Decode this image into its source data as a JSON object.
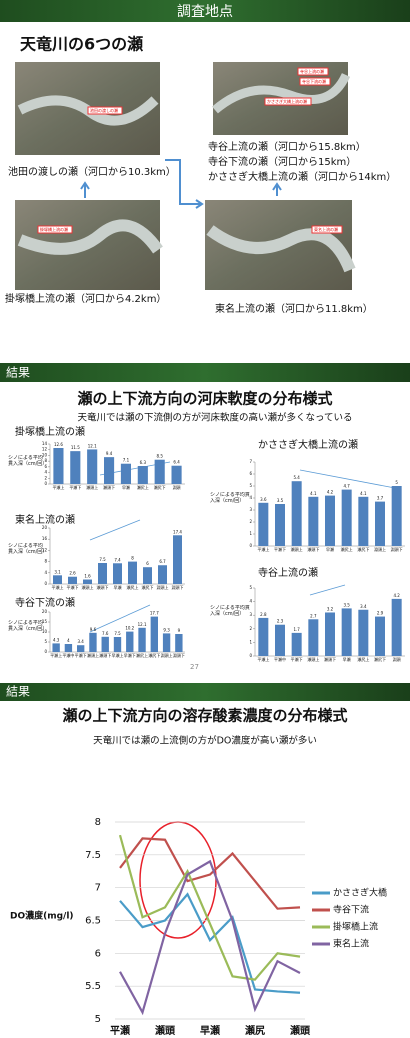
{
  "slide1": {
    "header": "調査地点",
    "title": "天竜川の6つの瀬",
    "captions": [
      "池田の渡しの瀬（河口から10.3km）",
      "掛塚橋上流の瀬（河口から4.2km）",
      "寺谷上流の瀬（河口から15.8km）",
      "寺谷下流の瀬（河口から15km）",
      "かささぎ大橋上流の瀬（河口から14km）",
      "東名上流の瀬（河口から11.8km）"
    ],
    "photo_labels": [
      "池田の渡しの瀬",
      "掛塚橋上流の瀬",
      "寺谷上流の瀬",
      "寺谷下流の瀬",
      "かささぎ大橋上流の瀬",
      "東名上流の瀬"
    ]
  },
  "slide2": {
    "header": "結果",
    "title": "瀬の上下流方向の河床軟度の分布様式",
    "subtitle": "天竜川では瀬の下流側の方が河床軟度の高い瀬が多くなっている",
    "page_number": "27"
  },
  "slide3": {
    "header": "結果",
    "title": "瀬の上下流方向の溶存酸素濃度の分布様式",
    "subtitle": "天竜川では瀬の上流側の方がDO濃度が高い瀬が多い"
  },
  "chart_data": [
    {
      "type": "bar",
      "title": "掛塚橋上流の瀬",
      "y_label": "シノによる平均貫入深（cm/回）",
      "color": "#4f81bd",
      "categories": [
        "平瀬上",
        "平瀬下",
        "瀬頭上",
        "瀬頭下",
        "早瀬",
        "瀬尻上",
        "瀬尻下",
        "淵頭"
      ],
      "values": [
        12.6,
        11.5,
        12.1,
        9.4,
        7.1,
        6.3,
        8.5,
        6.4
      ],
      "ylim": [
        0,
        14
      ],
      "yticks": [
        0,
        2,
        4,
        6,
        8,
        10,
        12,
        14
      ]
    },
    {
      "type": "bar",
      "title": "東名上流の瀬",
      "y_label": "シノによる平均貫入深（cm/回）",
      "color": "#4f81bd",
      "categories": [
        "平瀬上",
        "平瀬下",
        "瀬頭上",
        "瀬頭下",
        "早瀬",
        "瀬尻上",
        "瀬尻下",
        "淵頭上",
        "淵頭下"
      ],
      "values": [
        3.1,
        2.6,
        1.6,
        7.5,
        7.4,
        8.0,
        6.0,
        6.7,
        17.4
      ],
      "ylim": [
        0,
        20
      ],
      "yticks": [
        0,
        4,
        8,
        12,
        16,
        20
      ]
    },
    {
      "type": "bar",
      "title": "寺谷下流の瀬",
      "y_label": "シノによる平均貫入深（cm/回）",
      "color": "#4f81bd",
      "categories": [
        "平瀬上",
        "平瀬中",
        "平瀬下",
        "瀬頭上",
        "瀬頭下",
        "早瀬上",
        "早瀬下",
        "瀬尻上",
        "瀬尻下",
        "淵頭上",
        "淵頭下"
      ],
      "values": [
        4.3,
        4.0,
        3.4,
        9.6,
        7.6,
        7.5,
        10.2,
        12.1,
        17.7,
        9.3,
        9.0
      ],
      "ylim": [
        0,
        20
      ],
      "yticks": [
        0,
        5,
        10,
        15,
        20
      ]
    },
    {
      "type": "bar",
      "title": "かささぎ大橋上流の瀬",
      "y_label": "シノによる平均貫入深（cm/回）",
      "color": "#4f81bd",
      "categories": [
        "平瀬上",
        "平瀬下",
        "瀬頭上",
        "瀬頭下",
        "早瀬",
        "瀬尻上",
        "瀬尻下",
        "淵頭上",
        "淵頭下"
      ],
      "values": [
        3.6,
        3.5,
        5.4,
        4.1,
        4.2,
        4.7,
        4.1,
        3.7,
        5.0
      ],
      "ylim": [
        0,
        7
      ],
      "yticks": [
        0,
        1,
        2,
        3,
        4,
        5,
        6,
        7
      ]
    },
    {
      "type": "bar",
      "title": "寺谷上流の瀬",
      "y_label": "シノによる平均貫入深（cm/回）",
      "color": "#4f81bd",
      "categories": [
        "平瀬上",
        "平瀬中",
        "平瀬下",
        "瀬頭上",
        "瀬頭下",
        "早瀬",
        "瀬尻上",
        "瀬尻下",
        "淵頭"
      ],
      "values": [
        2.8,
        2.3,
        1.7,
        2.7,
        3.2,
        3.5,
        3.4,
        2.9,
        4.2
      ],
      "ylim": [
        0,
        5
      ],
      "yticks": [
        0,
        1,
        2,
        3,
        4,
        5
      ]
    },
    {
      "type": "line",
      "y_label": "DO濃度(mg/l)",
      "legend": "right",
      "categories": [
        "平瀬",
        null,
        "瀬頭",
        null,
        "早瀬",
        null,
        "瀬尻",
        null,
        "瀬頭"
      ],
      "ylim": [
        5,
        8
      ],
      "yticks": [
        5,
        5.5,
        6,
        6.5,
        7,
        7.5,
        8
      ],
      "grid": true,
      "series": [
        {
          "name": "かささぎ大橋",
          "color": "#4a9cc8",
          "values": [
            6.8,
            6.4,
            6.5,
            6.9,
            6.2,
            6.55,
            5.45,
            5.42,
            5.4
          ]
        },
        {
          "name": "寺谷下流",
          "color": "#c0504d",
          "values": [
            7.3,
            7.75,
            7.73,
            7.1,
            7.2,
            7.52,
            7.1,
            6.68,
            6.7
          ]
        },
        {
          "name": "掛塚橋上流",
          "color": "#9bbb59",
          "values": [
            7.8,
            6.55,
            6.7,
            7.25,
            6.45,
            5.65,
            5.6,
            6.0,
            5.95
          ]
        },
        {
          "name": "東名上流",
          "color": "#8064a2",
          "values": [
            5.72,
            5.1,
            6.3,
            7.2,
            7.4,
            6.5,
            5.15,
            5.88,
            5.7
          ]
        }
      ]
    }
  ]
}
